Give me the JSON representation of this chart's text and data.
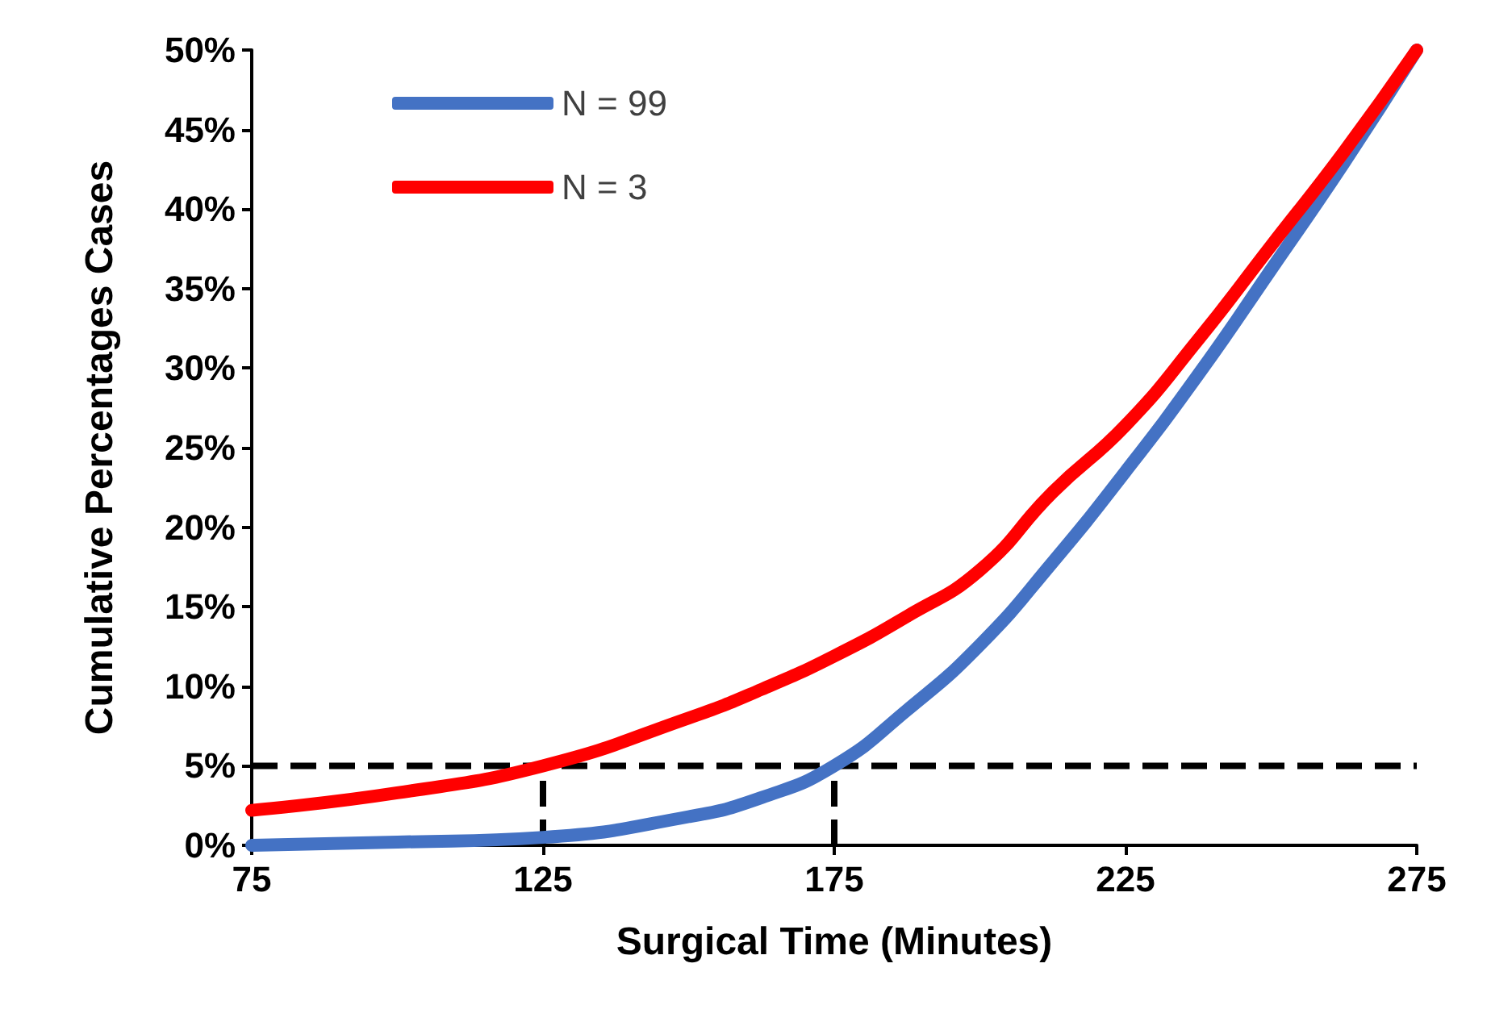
{
  "chart_data": {
    "type": "line",
    "xlabel": "Surgical Time (Minutes)",
    "ylabel": "Cumulative Percentages Cases",
    "x": [
      75,
      100,
      125,
      150,
      162.5,
      175,
      187.5,
      200,
      212.5,
      225,
      237.5,
      250,
      262.5,
      275
    ],
    "series": [
      {
        "name": "N = 99",
        "color": "#4472c4",
        "values": [
          0,
          0.2,
          0.5,
          1.8,
          3.0,
          5.0,
          8.5,
          12.6,
          17.8,
          23.5,
          29.6,
          36.2,
          42.9,
          50
        ]
      },
      {
        "name": "N = 3",
        "color": "#ff0000",
        "values": [
          2.2,
          3.3,
          5.0,
          8.0,
          9.8,
          11.9,
          14.4,
          17.3,
          22.2,
          26.4,
          31.8,
          37.7,
          43.6,
          50
        ]
      }
    ],
    "xlim": [
      75,
      275
    ],
    "xticks": [
      75,
      125,
      175,
      225,
      275
    ],
    "ylim": [
      0,
      50
    ],
    "yticks": [
      {
        "value": 0,
        "label": "0%"
      },
      {
        "value": 5,
        "label": "5%"
      },
      {
        "value": 10,
        "label": "10%"
      },
      {
        "value": 15,
        "label": "15%"
      },
      {
        "value": 20,
        "label": "20%"
      },
      {
        "value": 25,
        "label": "25%"
      },
      {
        "value": 30,
        "label": "30%"
      },
      {
        "value": 35,
        "label": "35%"
      },
      {
        "value": 40,
        "label": "40%"
      },
      {
        "value": 45,
        "label": "45%"
      },
      {
        "value": 50,
        "label": "50%"
      }
    ],
    "ref_lines": [
      {
        "axis": "y",
        "value": 5,
        "color": "#000000",
        "line_style": "dashed"
      },
      {
        "axis": "x",
        "value": 125,
        "color": "#000000",
        "line_style": "dashed"
      },
      {
        "axis": "x",
        "value": 175,
        "color": "#000000",
        "line_style": "dashed"
      }
    ],
    "grid": false,
    "legend": "top left",
    "marker": "none",
    "line_style": "solid"
  }
}
